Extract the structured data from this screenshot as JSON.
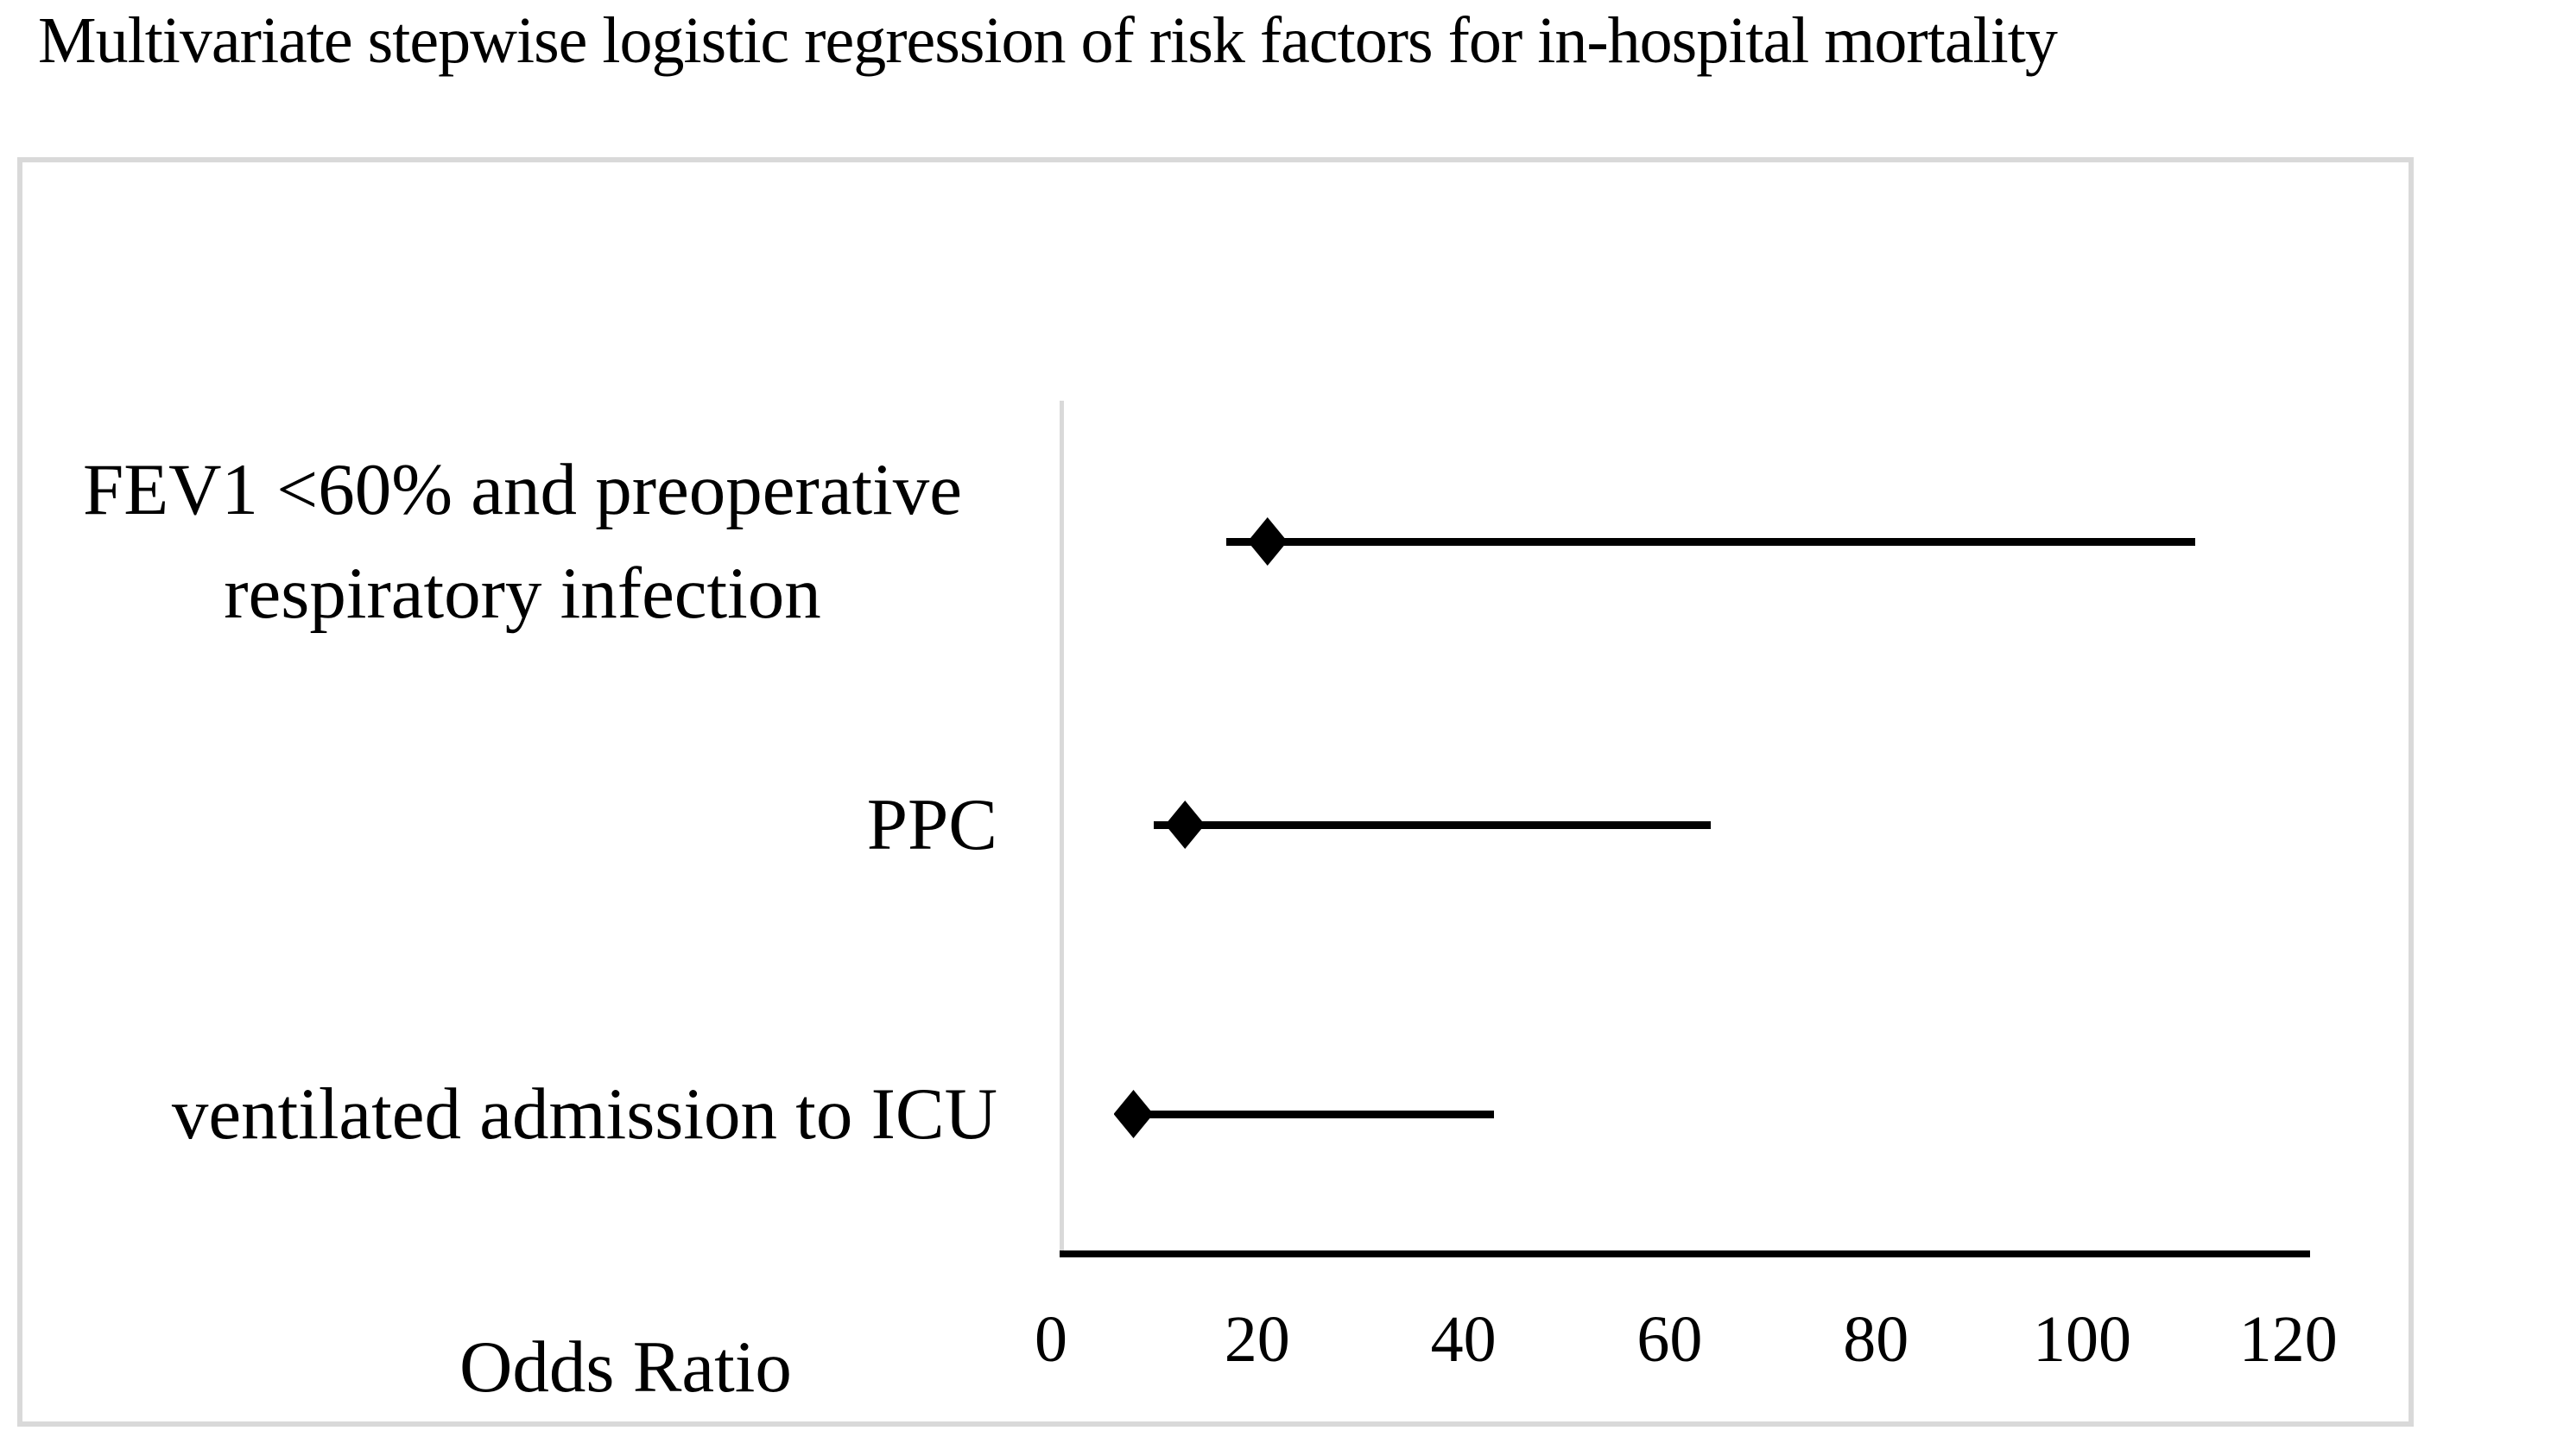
{
  "title": "Multivariate stepwise logistic regression of risk factors for in-hospital mortality",
  "chart_data": {
    "type": "scatter",
    "variant": "forest-plot",
    "title": "Multivariate stepwise logistic regression of risk factors for in-hospital mortality",
    "xlabel": "Odds Ratio",
    "ylabel": "",
    "xlim": [
      0,
      120
    ],
    "xticks": [
      0,
      20,
      40,
      60,
      80,
      100,
      120
    ],
    "grid": false,
    "legend": "none",
    "marker": "diamond",
    "series": [
      {
        "label": "FEV1 <60% and preoperative respiratory infection",
        "label_lines": [
          "FEV1 <60% and preoperative",
          "respiratory infection"
        ],
        "odds_ratio": 21,
        "ci_low": 17,
        "ci_high": 111
      },
      {
        "label": "PPC",
        "label_lines": [
          "PPC"
        ],
        "odds_ratio": 13,
        "ci_low": 10,
        "ci_high": 64
      },
      {
        "label": "ventilated admission to ICU",
        "label_lines": [
          "ventilated admission to ICU"
        ],
        "odds_ratio": 8,
        "ci_low": 7,
        "ci_high": 43
      }
    ],
    "colors": {
      "marker": "#000000",
      "ci_line": "#000000",
      "x_axis_line": "#000000",
      "y_axis_line": "#d9d9d9",
      "frame_border": "#d9d9d9",
      "text": "#000000",
      "background": "#ffffff"
    }
  }
}
